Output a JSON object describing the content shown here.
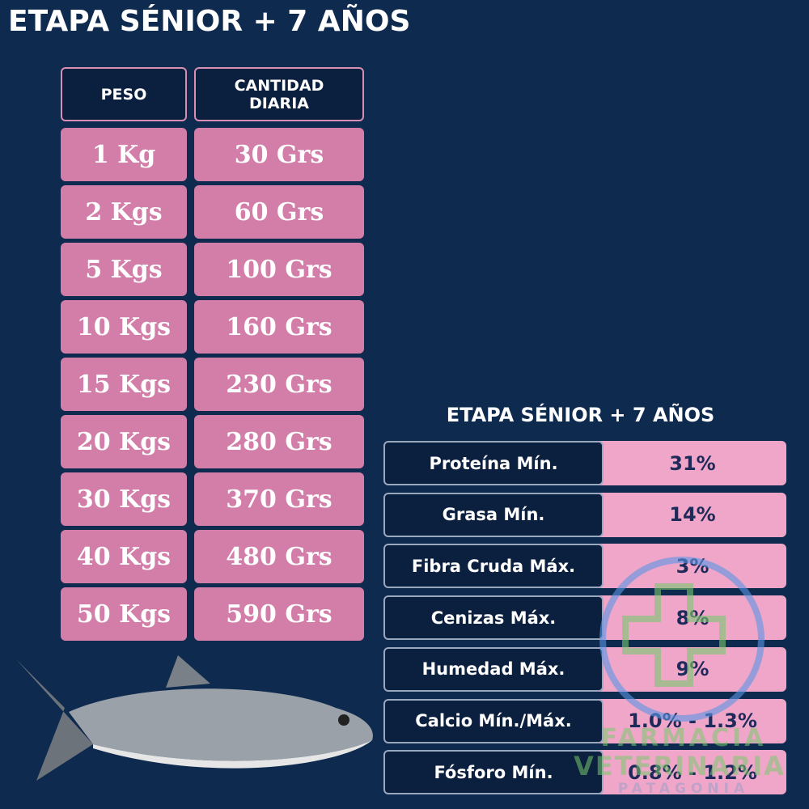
{
  "title": "ETAPA SÉNIOR + 7 AÑOS",
  "feeding_table": {
    "headers": [
      "PESO",
      "CANTIDAD DIARIA"
    ],
    "rows": [
      [
        "1 Kg",
        "30 Grs"
      ],
      [
        "2 Kgs",
        "60 Grs"
      ],
      [
        "5 Kgs",
        "100 Grs"
      ],
      [
        "10 Kgs",
        "160 Grs"
      ],
      [
        "15 Kgs",
        "230 Grs"
      ],
      [
        "20 Kgs",
        "280 Grs"
      ],
      [
        "30 Kgs",
        "370 Grs"
      ],
      [
        "40 Kgs",
        "480 Grs"
      ],
      [
        "50 Kgs",
        "590 Grs"
      ]
    ]
  },
  "nutrition_table": {
    "title": "ETAPA SÉNIOR + 7 AÑOS",
    "rows": [
      [
        "Proteína Mín.",
        "31%"
      ],
      [
        "Grasa Mín.",
        "14%"
      ],
      [
        "Fibra Cruda Máx.",
        "3%"
      ],
      [
        "Cenizas Máx.",
        "8%"
      ],
      [
        "Humedad Máx.",
        "9%"
      ],
      [
        "Calcio Mín./Máx.",
        "1.0% - 1.3%"
      ],
      [
        "Fósforo Mín.",
        "0.8% - 1.2%"
      ]
    ]
  },
  "watermark": {
    "line1": "FARMACIA",
    "line2": "VETERINARIA",
    "line3": "PATAGONIA"
  }
}
